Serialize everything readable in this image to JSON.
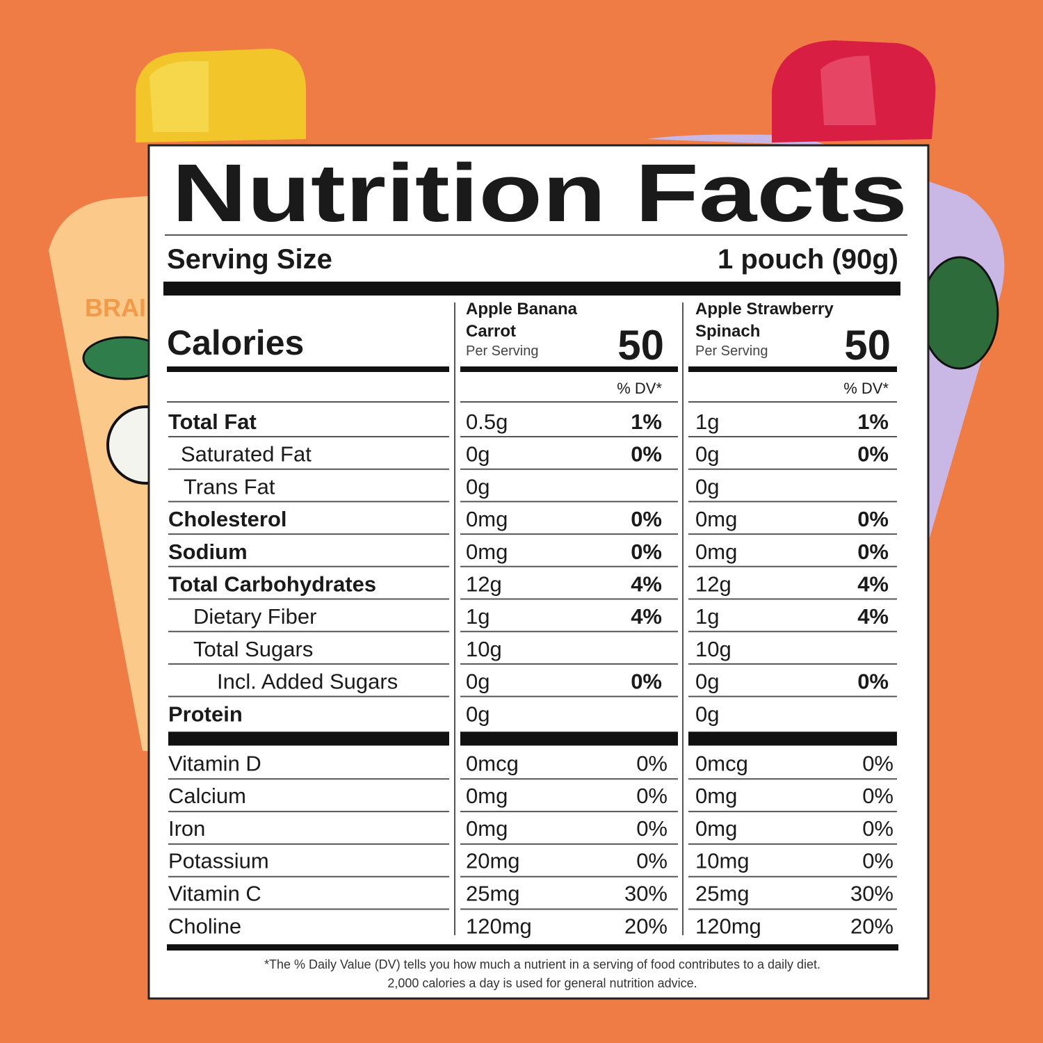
{
  "background": {
    "pouch_text": "BRAI"
  },
  "title": "Nutrition Facts",
  "serving_size": {
    "label": "Serving Size",
    "value": "1 pouch (90g)"
  },
  "calories_label": "Calories",
  "products": [
    {
      "name": "Apple Banana Carrot",
      "per_serving": "Per Serving",
      "calories": "50",
      "dv_header": "% DV*"
    },
    {
      "name": "Apple Strawberry Spinach",
      "per_serving": "Per Serving",
      "calories": "50",
      "dv_header": "% DV*"
    }
  ],
  "nutrients": {
    "rows": [
      {
        "label": "Total Fat",
        "amounts": [
          "0.5g",
          "1g"
        ],
        "dv": [
          "1%",
          "1%"
        ]
      },
      {
        "label": "Saturated Fat",
        "amounts": [
          "0g",
          "0g"
        ],
        "dv": [
          "0%",
          "0%"
        ]
      },
      {
        "label": "Trans Fat",
        "amounts": [
          "0g",
          "0g"
        ]
      },
      {
        "label": "Cholesterol",
        "amounts": [
          "0mg",
          "0mg"
        ],
        "dv": [
          "0%",
          "0%"
        ]
      },
      {
        "label": "Sodium",
        "amounts": [
          "0mg",
          "0mg"
        ],
        "dv": [
          "0%",
          "0%"
        ]
      },
      {
        "label": "Total Carbohydrates",
        "amounts": [
          "12g",
          "12g"
        ],
        "dv": [
          "4%",
          "4%"
        ]
      },
      {
        "label": "Dietary Fiber",
        "amounts": [
          "1g",
          "1g"
        ],
        "dv": [
          "4%",
          "4%"
        ]
      },
      {
        "label": "Total Sugars",
        "amounts": [
          "10g",
          "10g"
        ]
      },
      {
        "label": "Incl. Added Sugars",
        "amounts": [
          "0g",
          "0g"
        ],
        "dv": [
          "0%",
          "0%"
        ]
      },
      {
        "label": "Protein",
        "amounts": [
          "0g",
          "0g"
        ]
      }
    ]
  },
  "vitamins": {
    "rows": [
      {
        "label": "Vitamin D",
        "amounts": [
          "0mcg",
          "0mcg"
        ],
        "dv": [
          "0%",
          "0%"
        ]
      },
      {
        "label": "Calcium",
        "amounts": [
          "0mg",
          "0mg"
        ],
        "dv": [
          "0%",
          "0%"
        ]
      },
      {
        "label": "Iron",
        "amounts": [
          "0mg",
          "0mg"
        ],
        "dv": [
          "0%",
          "0%"
        ]
      },
      {
        "label": "Potassium",
        "amounts": [
          "20mg",
          "10mg"
        ],
        "dv": [
          "0%",
          "0%"
        ]
      },
      {
        "label": "Vitamin C",
        "amounts": [
          "25mg",
          "25mg"
        ],
        "dv": [
          "30%",
          "30%"
        ]
      },
      {
        "label": "Choline",
        "amounts": [
          "120mg",
          "120mg"
        ],
        "dv": [
          "20%",
          "20%"
        ]
      }
    ]
  },
  "footnote": [
    "*The % Daily Value (DV) tells you how much a nutrient in a serving of food contributes to a daily diet.",
    "2,000 calories a day is used for general nutrition advice."
  ]
}
